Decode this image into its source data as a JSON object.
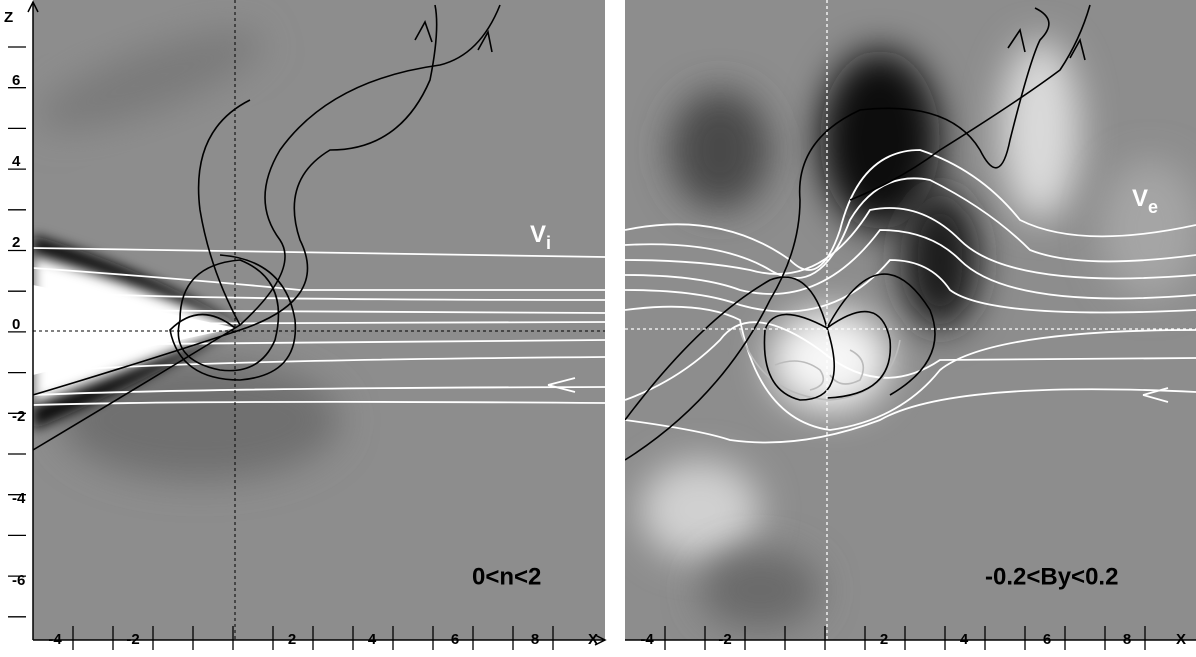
{
  "panels": [
    {
      "y_axis_label": "Z",
      "x_axis_label": "X",
      "y_tick_labels": [
        "6",
        "4",
        "2",
        "0",
        "-2",
        "-4",
        "-6"
      ],
      "x_tick_labels": [
        "-4",
        "-2",
        "2",
        "4",
        "6",
        "8"
      ],
      "range_label": "0<n<2",
      "flow_label": {
        "base": "V",
        "subscript": "i"
      }
    },
    {
      "x_axis_label": "X",
      "x_tick_labels": [
        "-4",
        "-2",
        "2",
        "4",
        "6",
        "8"
      ],
      "range_label": "-0.2<By<0.2",
      "flow_label": {
        "base": "V",
        "subscript": "e"
      }
    }
  ]
}
